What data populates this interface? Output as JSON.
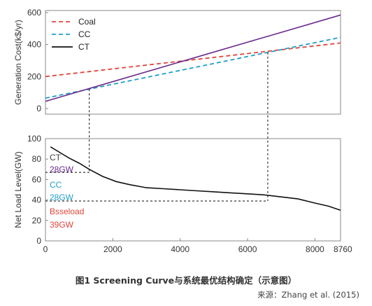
{
  "chart_data": [
    {
      "type": "line",
      "ylabel": "Generation Cost(k$/yr)",
      "x_range": [
        0,
        8760
      ],
      "ylim": [
        0,
        600
      ],
      "yticks": [
        "0",
        "200",
        "400",
        "600"
      ],
      "series": [
        {
          "name": "Coal",
          "style": "dashed",
          "color": "#e0453a",
          "x": [
            0,
            8760
          ],
          "y": [
            200,
            410
          ]
        },
        {
          "name": "CC",
          "style": "dashed",
          "color": "#1f9ec9",
          "x": [
            0,
            8760
          ],
          "y": [
            65,
            445
          ]
        },
        {
          "name": "CT",
          "style": "solid",
          "color": "#6a2a8c",
          "x": [
            0,
            8760
          ],
          "y": [
            45,
            585
          ]
        }
      ],
      "legend": "top-left"
    },
    {
      "type": "line",
      "ylabel": "Net Load Level(GW)",
      "xlim": [
        0,
        8760
      ],
      "xticks": [
        "0",
        "2000",
        "4000",
        "6000",
        "8000",
        "8760"
      ],
      "ylim": [
        0,
        100
      ],
      "yticks": [
        "0",
        "20",
        "40",
        "60",
        "80",
        "100"
      ],
      "series": [
        {
          "name": "Net load",
          "color": "#111111",
          "x": [
            150,
            400,
            700,
            1000,
            1300,
            1700,
            2100,
            2500,
            3000,
            3500,
            4000,
            4500,
            5000,
            5500,
            6000,
            6500,
            7000,
            7500,
            8000,
            8400,
            8760
          ],
          "y": [
            92,
            87,
            81,
            76,
            70,
            63,
            58,
            55,
            52,
            51,
            50,
            49,
            48,
            47,
            46,
            45,
            43,
            41,
            37,
            34,
            30
          ]
        }
      ],
      "annotations": [
        {
          "text": "CT",
          "color": "#444444"
        },
        {
          "text": "28GW",
          "color": "#6a2a8c"
        },
        {
          "text": "CC",
          "color": "#1f9ec9"
        },
        {
          "text": "28GW",
          "color": "#1f9ec9"
        },
        {
          "text": "Bsseload",
          "color": "#e0453a"
        },
        {
          "text": "39GW",
          "color": "#e0453a"
        }
      ],
      "guide_levels_gw": [
        67,
        39
      ],
      "crossover_hours": [
        1300,
        6600
      ]
    }
  ],
  "caption": "图1  Screening Curve与系统最优结构确定（示意图）",
  "source": "来源：Zhang et al. (2015)"
}
